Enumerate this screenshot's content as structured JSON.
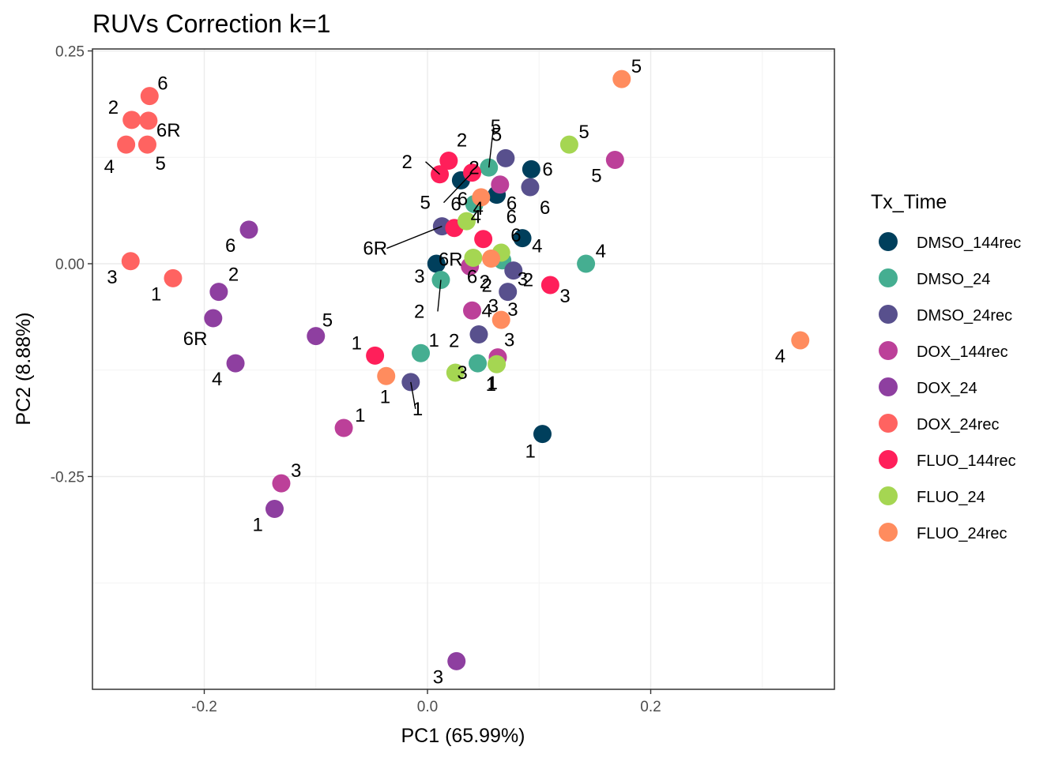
{
  "chart_data": {
    "type": "scatter",
    "title": "RUVs Correction k=1",
    "xlabel": "PC1 (65.99%)",
    "ylabel": "PC2 (8.88%)",
    "xlim": [
      -0.3,
      0.365
    ],
    "ylim": [
      -0.5,
      0.252
    ],
    "x_ticks": [
      -0.2,
      0.0,
      0.2
    ],
    "x_tick_labels": [
      "-0.2",
      "0.0",
      "0.2"
    ],
    "y_ticks": [
      0.25,
      0.0,
      -0.25
    ],
    "y_tick_labels": [
      "0.25",
      "0.00",
      "-0.25"
    ],
    "grid": true,
    "legend_title": "Tx_Time",
    "legend_position": "right",
    "series": [
      {
        "name": "DMSO_144rec",
        "color": "#003f5c",
        "points": [
          {
            "x": 0.103,
            "y": -0.2,
            "label": "1"
          },
          {
            "x": 0.03,
            "y": 0.098,
            "label": "2"
          },
          {
            "x": 0.008,
            "y": 0.0,
            "label": "3"
          },
          {
            "x": 0.085,
            "y": 0.03,
            "label": "4"
          },
          {
            "x": 0.062,
            "y": 0.081,
            "label": "6"
          },
          {
            "x": 0.093,
            "y": 0.111,
            "label": "6"
          }
        ]
      },
      {
        "name": "DMSO_24",
        "color": "#45ae91",
        "points": [
          {
            "x": -0.006,
            "y": -0.105,
            "label": "1"
          },
          {
            "x": 0.045,
            "y": -0.117,
            "label": "1"
          },
          {
            "x": 0.012,
            "y": -0.019,
            "label": "2"
          },
          {
            "x": 0.067,
            "y": 0.004,
            "label": "3"
          },
          {
            "x": 0.142,
            "y": 0.0,
            "label": "4"
          },
          {
            "x": 0.055,
            "y": 0.113,
            "label": "5"
          },
          {
            "x": 0.042,
            "y": 0.07,
            "label": "6"
          }
        ]
      },
      {
        "name": "DMSO_24rec",
        "color": "#58508d",
        "points": [
          {
            "x": -0.015,
            "y": -0.139,
            "label": "1"
          },
          {
            "x": 0.077,
            "y": -0.008,
            "label": "2"
          },
          {
            "x": 0.046,
            "y": -0.083,
            "label": "2"
          },
          {
            "x": 0.072,
            "y": -0.033,
            "label": "3"
          },
          {
            "x": 0.07,
            "y": 0.124,
            "label": "5"
          },
          {
            "x": 0.092,
            "y": 0.09,
            "label": "6"
          },
          {
            "x": 0.013,
            "y": 0.044,
            "label": "6R"
          }
        ]
      },
      {
        "name": "DOX_144rec",
        "color": "#bc4099",
        "points": [
          {
            "x": -0.075,
            "y": -0.193,
            "label": "1"
          },
          {
            "x": 0.038,
            "y": -0.003,
            "label": "2"
          },
          {
            "x": -0.131,
            "y": -0.258,
            "label": "3"
          },
          {
            "x": 0.063,
            "y": -0.11,
            "label": "3"
          },
          {
            "x": 0.04,
            "y": -0.055,
            "label": "4"
          },
          {
            "x": 0.168,
            "y": 0.122,
            "label": "5"
          },
          {
            "x": 0.065,
            "y": 0.093,
            "label": "6"
          }
        ]
      },
      {
        "name": "DOX_24",
        "color": "#8e3fa0",
        "points": [
          {
            "x": -0.137,
            "y": -0.288,
            "label": "1"
          },
          {
            "x": -0.187,
            "y": -0.033,
            "label": "2"
          },
          {
            "x": 0.026,
            "y": -0.467,
            "label": "3"
          },
          {
            "x": -0.172,
            "y": -0.117,
            "label": "4"
          },
          {
            "x": -0.1,
            "y": -0.085,
            "label": "5"
          },
          {
            "x": -0.16,
            "y": 0.04,
            "label": "6"
          },
          {
            "x": -0.192,
            "y": -0.064,
            "label": "6R"
          }
        ]
      },
      {
        "name": "DOX_24rec",
        "color": "#ff6361",
        "points": [
          {
            "x": -0.228,
            "y": -0.017,
            "label": "1"
          },
          {
            "x": -0.265,
            "y": 0.169,
            "label": "2"
          },
          {
            "x": -0.266,
            "y": 0.003,
            "label": "3"
          },
          {
            "x": -0.27,
            "y": 0.14,
            "label": "4"
          },
          {
            "x": -0.251,
            "y": 0.14,
            "label": "5"
          },
          {
            "x": -0.249,
            "y": 0.197,
            "label": "6"
          },
          {
            "x": -0.25,
            "y": 0.168,
            "label": "6R"
          }
        ]
      },
      {
        "name": "FLUO_144rec",
        "color": "#ff1f5a",
        "points": [
          {
            "x": -0.047,
            "y": -0.108,
            "label": "1"
          },
          {
            "x": 0.019,
            "y": 0.121,
            "label": "2"
          },
          {
            "x": 0.11,
            "y": -0.025,
            "label": "3"
          },
          {
            "x": 0.05,
            "y": 0.029,
            "label": "4"
          },
          {
            "x": 0.04,
            "y": 0.107,
            "label": "5"
          },
          {
            "x": 0.011,
            "y": 0.105,
            "label": "2"
          },
          {
            "x": 0.024,
            "y": 0.042,
            "label": "6R"
          }
        ]
      },
      {
        "name": "FLUO_24",
        "color": "#a5d652",
        "points": [
          {
            "x": 0.062,
            "y": -0.118,
            "label": "1"
          },
          {
            "x": 0.025,
            "y": -0.128,
            "label": "3"
          },
          {
            "x": 0.035,
            "y": 0.05,
            "label": "4"
          },
          {
            "x": 0.127,
            "y": 0.14,
            "label": "5"
          },
          {
            "x": 0.041,
            "y": 0.007,
            "label": "6"
          },
          {
            "x": 0.066,
            "y": 0.013,
            "label": "6"
          }
        ]
      },
      {
        "name": "FLUO_24rec",
        "color": "#ff8c5e",
        "points": [
          {
            "x": -0.037,
            "y": -0.132,
            "label": "1"
          },
          {
            "x": 0.057,
            "y": 0.006,
            "label": "2"
          },
          {
            "x": 0.066,
            "y": -0.066,
            "label": "3"
          },
          {
            "x": 0.334,
            "y": -0.09,
            "label": "4"
          },
          {
            "x": 0.174,
            "y": 0.217,
            "label": "5"
          },
          {
            "x": 0.048,
            "y": 0.078,
            "label": "6"
          }
        ]
      }
    ]
  }
}
